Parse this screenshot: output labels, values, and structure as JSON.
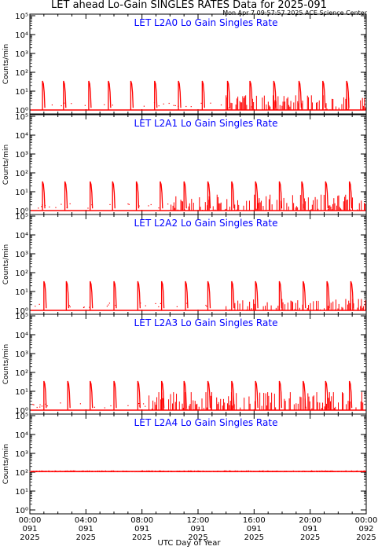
{
  "title": "LET ahead Lo-Gain SINGLES RATES Data for 2025-091",
  "subtitle": "Mon Apr  7 09:57:57 2025 ACE Science Center",
  "xlabel": "UTC Day of Year",
  "chart_data": {
    "type": "line",
    "ylabel": "Counts/min",
    "yscale": "log",
    "ylim": [
      1,
      100000
    ],
    "ytick_labels": [
      "10⁰",
      "10¹",
      "10²",
      "10³",
      "10⁴",
      "10⁵"
    ],
    "xlim": [
      0,
      24
    ],
    "x_unit": "hours UTC, day 091 2025",
    "xticks": [
      {
        "hour": 0,
        "time": "00:00",
        "day": "091",
        "year": "2025"
      },
      {
        "hour": 4,
        "time": "04:00",
        "day": "091",
        "year": "2025"
      },
      {
        "hour": 8,
        "time": "08:00",
        "day": "091",
        "year": "2025"
      },
      {
        "hour": 12,
        "time": "12:00",
        "day": "091",
        "year": "2025"
      },
      {
        "hour": 16,
        "time": "16:00",
        "day": "091",
        "year": "2025"
      },
      {
        "hour": 20,
        "time": "20:00",
        "day": "091",
        "year": "2025"
      },
      {
        "hour": 24,
        "time": "00:00",
        "day": "092",
        "year": "2025"
      }
    ],
    "line_color": "#ff0000",
    "title_color": "#0000ff",
    "panels": [
      {
        "title": "LET L2A0 Lo Gain Singles Rate",
        "baseline": 1,
        "spike_hours": [
          0.9,
          2.4,
          4.2,
          5.6,
          7.2,
          8.9,
          10.6,
          12.3,
          14.1,
          15.7,
          17.4,
          19.2,
          20.9,
          22.6
        ],
        "spike_peak": 35,
        "noise_start_hour": 14.0,
        "noise_max": 6
      },
      {
        "title": "LET L2A1 Lo Gain Singles Rate",
        "baseline": 1,
        "spike_hours": [
          0.9,
          2.5,
          4.3,
          5.9,
          7.6,
          9.3,
          11.0,
          12.7,
          14.4,
          16.1,
          17.8,
          19.4,
          21.1,
          22.8
        ],
        "spike_peak": 35,
        "noise_start_hour": 10.0,
        "noise_max": 7
      },
      {
        "title": "LET L2A2 Lo Gain Singles Rate",
        "baseline": 1,
        "spike_hours": [
          1.0,
          2.6,
          4.3,
          6.0,
          7.7,
          9.4,
          11.1,
          12.7,
          14.4,
          16.1,
          17.8,
          19.5,
          21.2,
          22.9
        ],
        "spike_peak": 35,
        "noise_start_hour": 14.0,
        "noise_max": 4
      },
      {
        "title": "LET L2A3 Lo Gain Singles Rate",
        "baseline": 1,
        "spike_hours": [
          1.0,
          2.7,
          4.3,
          6.0,
          7.7,
          9.4,
          11.0,
          12.7,
          14.4,
          16.1,
          17.8,
          19.5,
          21.1,
          22.8
        ],
        "spike_peak": 35,
        "noise_start_hour": 8.5,
        "noise_max": 9
      },
      {
        "title": "LET L2A4 Lo Gain Singles Rate",
        "baseline": 110,
        "spike_hours": [],
        "spike_peak": 0,
        "noise_start_hour": 0,
        "noise_max": 130
      }
    ]
  }
}
